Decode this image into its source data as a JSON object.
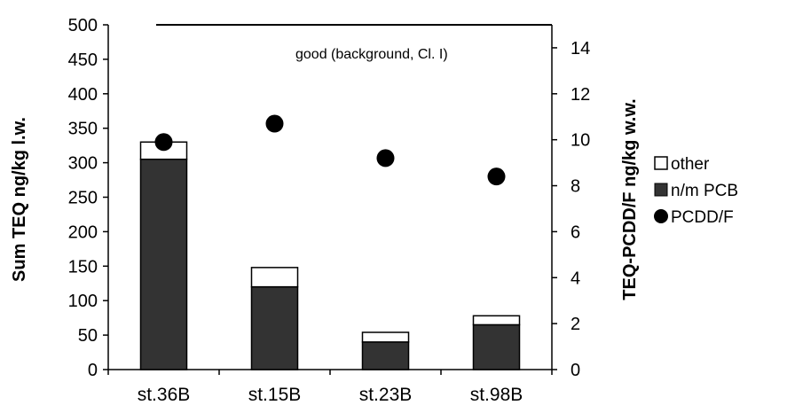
{
  "chart_data": {
    "type": "bar",
    "categories": [
      "st.36B",
      "st.15B",
      "st.23B",
      "st.98B"
    ],
    "series": [
      {
        "name": "n/m PCB",
        "axis": "left",
        "stack": true,
        "values": [
          305,
          120,
          40,
          65
        ],
        "color": "#333333"
      },
      {
        "name": "other",
        "axis": "left",
        "stack": true,
        "values": [
          25,
          28,
          14,
          13
        ],
        "color": "#ffffff"
      },
      {
        "name": "PCDD/F",
        "axis": "right",
        "type": "scatter",
        "values": [
          9.9,
          10.7,
          9.2,
          8.4
        ],
        "color": "#000000"
      }
    ],
    "ylabel": "Sum TEQ ng/kg l.w.",
    "ylabel_right": "TEQ-PCDD/F ng/kg w.w.",
    "ylim": [
      0,
      500
    ],
    "yticks": [
      0,
      50,
      100,
      150,
      200,
      250,
      300,
      350,
      400,
      450,
      500
    ],
    "ylim_right": [
      0,
      15
    ],
    "yticks_right": [
      0,
      2,
      4,
      6,
      8,
      10,
      12,
      14
    ],
    "reference_line": {
      "value": 500,
      "axis": "left",
      "label": "good (background, Cl. I)"
    },
    "legend": {
      "position": "right",
      "entries": [
        "other",
        "n/m PCB",
        "PCDD/F"
      ]
    },
    "grid": false
  }
}
